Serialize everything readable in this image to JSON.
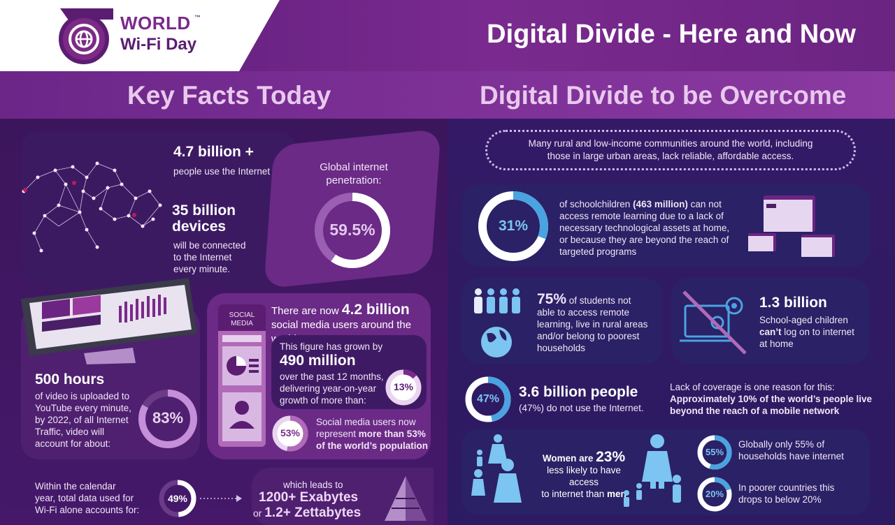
{
  "header": {
    "logo_line1": "WORLD",
    "logo_tm": "™",
    "logo_line2": "Wi-Fi Day",
    "title": "Digital Divide - Here and Now"
  },
  "left": {
    "section_title": "Key Facts Today",
    "internet_users": {
      "value": "4.7 billion +",
      "label": "people use the Internet"
    },
    "devices": {
      "value_line1": "35 billion",
      "value_line2": "devices",
      "label_line1": "will be connected",
      "label_line2": "to the Internet",
      "label_line3": "every minute."
    },
    "penetration": {
      "label_line1": "Global internet",
      "label_line2": "penetration:",
      "value": "59.5%",
      "fraction": 0.595
    },
    "video": {
      "value": "500 hours",
      "line1": "of video is uploaded to",
      "line2": "YouTube every minute,",
      "line3": "by 2022, of all Internet",
      "line4": "Traffic, video will",
      "line5": "account for about:",
      "percent": "83%",
      "fraction": 0.83
    },
    "social": {
      "badge_line1": "SOCIAL",
      "badge_line2": "MEDIA",
      "headline_pre": "There are now ",
      "headline_value": "4.2 billion",
      "headline_post": "social media users around the world",
      "growth_pre": "This figure has grown by",
      "growth_value": "490 million",
      "growth_line1": "over the past 12 months,",
      "growth_line2": "delivering year-on-year",
      "growth_line3": "growth of more than:",
      "growth_percent": "13%",
      "growth_fraction": 0.13,
      "share_percent": "53%",
      "share_fraction": 0.53,
      "share_line1": "Social media users now",
      "share_line2_pre": "represent ",
      "share_line2_bold": "more than 53%",
      "share_line3": "of the world’s population"
    },
    "wifi": {
      "line1": "Within the calendar",
      "line2": "year, total data used for",
      "line3": "Wi-Fi alone accounts for:",
      "percent": "49%",
      "fraction": 0.49,
      "leads_to": "which leads to",
      "exabytes": "1200+ Exabytes",
      "zetta_pre": "or ",
      "zettabytes": "1.2+ Zettabytes"
    }
  },
  "right": {
    "section_title": "Digital Divide to be Overcome",
    "intro_line1": "Many rural and low-income communities around the world, including",
    "intro_line2": "those in large urban areas, lack reliable, affordable access.",
    "schoolchildren": {
      "percent": "31%",
      "fraction": 0.31,
      "line1_pre": "of schoolchildren ",
      "line1_bold": "(463 million)",
      "line1_post": " can not",
      "line2": "access remote learning due to a lack of",
      "line3": "necessary technological assets at home,",
      "line4": "or because they are beyond the reach of",
      "line5": "targeted programs"
    },
    "students": {
      "percent": "75%",
      "line1": " of students not",
      "line2": "able to access remote",
      "line3": "learning, live in rural areas",
      "line4": "and/or belong to poorest",
      "line5": "households"
    },
    "children_offline": {
      "value": "1.3 billion",
      "line1": "School-aged children",
      "line2_bold": "can’t",
      "line2_post": " log on to internet",
      "line3": "at home"
    },
    "offline_people": {
      "percent": "47%",
      "fraction": 0.47,
      "value": "3.6 billion people",
      "label": "(47%) do not use the Internet.",
      "coverage_line1": "Lack of coverage is one reason for this:",
      "coverage_line2": "Approximately 10% of the world’s people live",
      "coverage_line3": "beyond the reach of a mobile network"
    },
    "women": {
      "pre": "Women are ",
      "value": "23%",
      "line2": "less likely to have access",
      "line3_pre": "to internet than ",
      "line3_bold": "men"
    },
    "households": {
      "percent": "55%",
      "fraction": 0.55,
      "line1": "Globally only 55% of",
      "line2": "households have internet"
    },
    "poorer": {
      "percent": "20%",
      "fraction": 0.2,
      "line1": "In poorer countries this",
      "line2": "drops to below 20%"
    }
  },
  "colors": {
    "header_purple": "#6b2482",
    "logo_purple": "#7a2a8a",
    "ring_light": "#d9a8e6",
    "ring_blue": "#4aa3e0",
    "title_pink": "#e8c9ee"
  }
}
